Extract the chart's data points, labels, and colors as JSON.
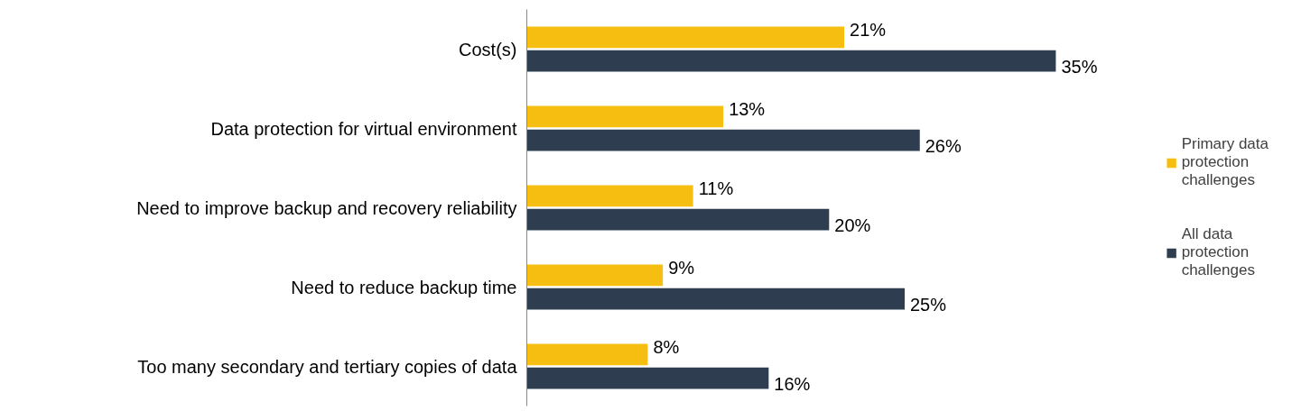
{
  "chart_data": {
    "type": "bar",
    "orientation": "horizontal",
    "categories": [
      "Cost(s)",
      "Data protection for virtual environment",
      "Need to improve backup and recovery reliability",
      "Need to reduce backup time",
      "Too many secondary and tertiary copies of data"
    ],
    "series": [
      {
        "name": "Primary data protection challenges",
        "color": "#f7be12",
        "values": [
          21,
          13,
          11,
          9,
          8
        ],
        "value_labels": [
          "21%",
          "13%",
          "11%",
          "9%",
          "8%"
        ]
      },
      {
        "name": "All data protection challenges",
        "color": "#2e3e50",
        "values": [
          35,
          26,
          20,
          25,
          16
        ],
        "value_labels": [
          "35%",
          "26%",
          "20%",
          "25%",
          "16%"
        ]
      }
    ],
    "legend": "right",
    "grid": false,
    "tick_labels": "y"
  }
}
